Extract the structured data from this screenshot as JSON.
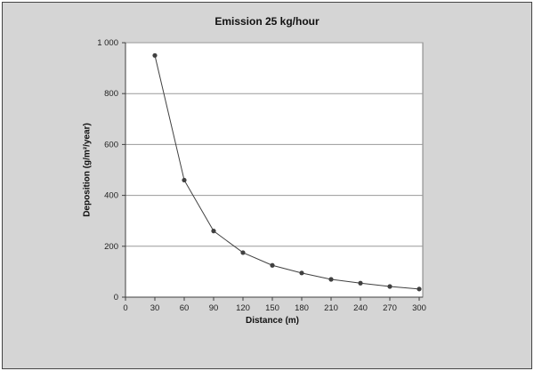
{
  "chart_data": {
    "type": "line",
    "title": "Emission 25 kg/hour",
    "xlabel": "Distance (m)",
    "ylabel": "Deposition (g/m²/year)",
    "x": [
      30,
      60,
      90,
      120,
      150,
      180,
      210,
      240,
      270,
      300
    ],
    "values": [
      950,
      460,
      260,
      175,
      125,
      95,
      70,
      55,
      42,
      32
    ],
    "xlim": [
      0,
      300
    ],
    "ylim": [
      0,
      1000
    ],
    "x_ticks": [
      0,
      30,
      60,
      90,
      120,
      150,
      180,
      210,
      240,
      270,
      300
    ],
    "y_ticks": [
      0,
      200,
      400,
      600,
      800,
      1000
    ],
    "y_tick_labels": [
      "0",
      "200",
      "400",
      "600",
      "800",
      "1 000"
    ],
    "grid": "horizontal",
    "legend": "none",
    "marker": "circle",
    "colors": {
      "line": "#404040",
      "marker": "#404040",
      "gridline": "#999999",
      "plot_border": "#808080",
      "axis": "#404040",
      "plot_bg": "#ffffff",
      "outer_bg": "#d5d5d5",
      "tick_text": "#222222"
    }
  }
}
